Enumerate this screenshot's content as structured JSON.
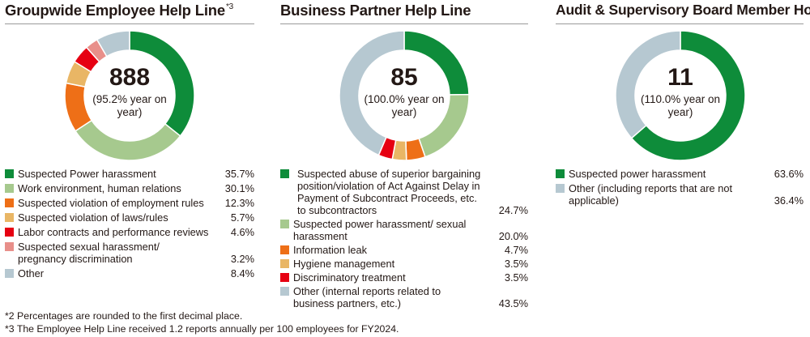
{
  "footnotes": [
    "*2 Percentages are rounded to the first decimal place.",
    "*3 The Employee Help Line received 1.2 reports annually per 100 employees for FY2024."
  ],
  "chart_data": [
    {
      "type": "pie",
      "title": "Groupwide Employee Help Line",
      "title_note": "*3",
      "center_value": "888",
      "center_sub": "(95.2% year on year)",
      "legend_placement": "bottom",
      "slices": [
        {
          "label": "Suspected Power harassment",
          "value": 35.7,
          "pct": "35.7%",
          "color": "#0e8c3a"
        },
        {
          "label": "Work environment, human relations",
          "value": 30.1,
          "pct": "30.1%",
          "color": "#a6c98e"
        },
        {
          "label": "Suspected violation of employment rules",
          "value": 12.3,
          "pct": "12.3%",
          "color": "#ee6f17"
        },
        {
          "label": "Suspected violation of laws/rules",
          "value": 5.7,
          "pct": "5.7%",
          "color": "#e9b665"
        },
        {
          "label": "Labor contracts and performance reviews",
          "value": 4.6,
          "pct": "4.6%",
          "color": "#e60012"
        },
        {
          "label": "Suspected sexual harassment/ pregnancy discrimination",
          "value": 3.2,
          "pct": "3.2%",
          "color": "#e88f8a"
        },
        {
          "label": "Other",
          "value": 8.4,
          "pct": "8.4%",
          "color": "#b6c8d1"
        }
      ]
    },
    {
      "type": "pie",
      "title": "Business Partner Help Line",
      "center_value": "85",
      "center_sub": "(100.0% year on year)",
      "legend_placement": "bottom",
      "slices": [
        {
          "label": "Suspected abuse of superior bargaining position/violation of Act Against Delay in Payment of Subcontract Proceeds, etc. to subcontractors",
          "value": 24.7,
          "pct": "24.7%",
          "color": "#0e8c3a"
        },
        {
          "label": "Suspected power harassment/ sexual harassment",
          "value": 20.0,
          "pct": "20.0%",
          "color": "#a6c98e"
        },
        {
          "label": "Information leak",
          "value": 4.7,
          "pct": "4.7%",
          "color": "#ee6f17"
        },
        {
          "label": "Hygiene management",
          "value": 3.5,
          "pct": "3.5%",
          "color": "#e9b665"
        },
        {
          "label": "Discriminatory treatment",
          "value": 3.5,
          "pct": "3.5%",
          "color": "#e60012"
        },
        {
          "label": "Other (internal reports related to business partners, etc.)",
          "value": 43.5,
          "pct": "43.5%",
          "color": "#b6c8d1"
        }
      ]
    },
    {
      "type": "pie",
      "title": "Audit & Supervisory Board Member Hotline",
      "center_value": "11",
      "center_sub": "(110.0% year on year)",
      "legend_placement": "bottom",
      "slices": [
        {
          "label": "Suspected power harassment",
          "value": 63.6,
          "pct": "63.6%",
          "color": "#0e8c3a"
        },
        {
          "label": "Other (including reports that are not applicable)",
          "value": 36.4,
          "pct": "36.4%",
          "color": "#b6c8d1"
        }
      ]
    }
  ]
}
